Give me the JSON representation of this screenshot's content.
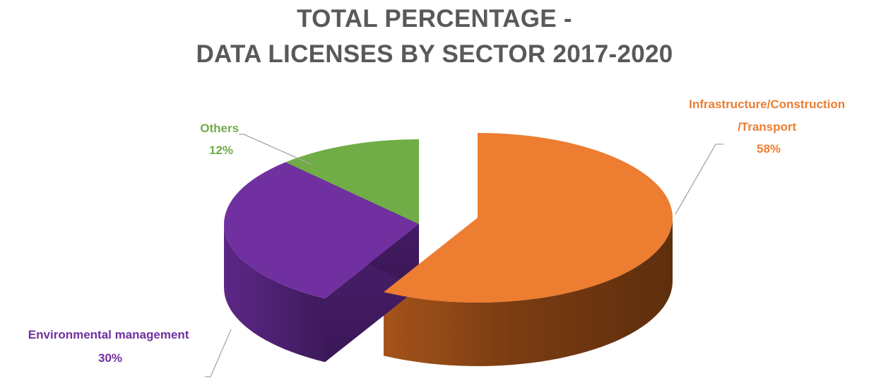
{
  "chart_data": {
    "type": "pie",
    "style": "3d-exploded",
    "title": [
      "TOTAL PERCENTAGE -",
      "DATA LICENSES BY SECTOR 2017-2020"
    ],
    "categories": [
      "Infrastructure/Construction/Transport",
      "Environmental management",
      "Others"
    ],
    "values": [
      58,
      30,
      12
    ],
    "unit": "%",
    "colors": [
      "#ED7D31",
      "#7030A0",
      "#70AD47"
    ],
    "labels": [
      {
        "lines": [
          "Infrastructure/Construction",
          "/Transport",
          "58%"
        ],
        "color": "#ED7D31"
      },
      {
        "lines": [
          "Environmental management",
          "30%"
        ],
        "color": "#7030A0"
      },
      {
        "lines": [
          "Others",
          "12%"
        ],
        "color": "#70AD47"
      }
    ],
    "legend": "none",
    "leader_line_color": "#A6A6A6"
  }
}
